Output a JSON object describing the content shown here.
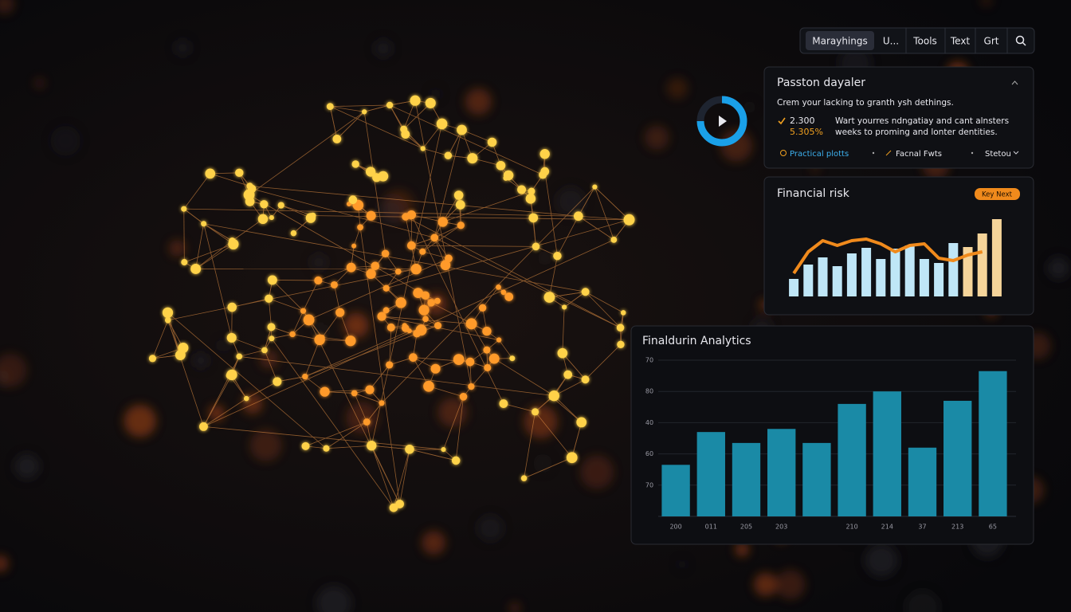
{
  "nav": {
    "items": [
      "Marayhings",
      "U...",
      "Tools",
      "Text",
      "Grt"
    ]
  },
  "summary_panel": {
    "title": "Passton dayaler",
    "subtitle": "Crem your lacking to granth ysh dethings.",
    "stat_value": "2.300",
    "stat_change": "5.305%",
    "description": [
      "Wart yourres ndngatiay and cant alnsters",
      "weeks to proming and lonter dentities."
    ],
    "links": [
      "Practical plotts",
      "Facnal Fwts",
      "Stetou"
    ]
  },
  "risk_panel": {
    "title": "Financial risk",
    "badge": "Key Next",
    "chart_data": {
      "type": "bar",
      "values": [
        22,
        40,
        49,
        38,
        54,
        61,
        47,
        60,
        64,
        47,
        42,
        67,
        62,
        79,
        97
      ],
      "colors": [
        "#bfe6f7",
        "#bfe6f7",
        "#bfe6f7",
        "#bfe6f7",
        "#bfe6f7",
        "#bfe6f7",
        "#bfe6f7",
        "#bfe6f7",
        "#bfe6f7",
        "#bfe6f7",
        "#bfe6f7",
        "#bfe6f7",
        "#f5d49a",
        "#f5d49a",
        "#f5d49a"
      ],
      "line_values": [
        29,
        56,
        70,
        64,
        70,
        72,
        66,
        56,
        64,
        66,
        48,
        45,
        52,
        56,
        null
      ],
      "line_color": "#f08a1c",
      "ylim": [
        0,
        100
      ]
    }
  },
  "analytics_panel": {
    "title": "Finaldurin Analytics",
    "chart_data": {
      "type": "bar",
      "categories": [
        "200",
        "011",
        "205",
        "203",
        null,
        "210",
        "214",
        "37",
        "213",
        "65"
      ],
      "values": [
        1.65,
        2.7,
        2.35,
        2.8,
        2.35,
        3.6,
        4.0,
        2.2,
        3.7,
        4.65
      ],
      "ylim": [
        0,
        5
      ],
      "yticks": [
        {
          "value": 5,
          "label": "70"
        },
        {
          "value": 4,
          "label": "80"
        },
        {
          "value": 3,
          "label": "40"
        },
        {
          "value": 2,
          "label": "60"
        },
        {
          "value": 1,
          "label": "70"
        }
      ],
      "grid": true,
      "color": "#1a8aa6"
    }
  }
}
